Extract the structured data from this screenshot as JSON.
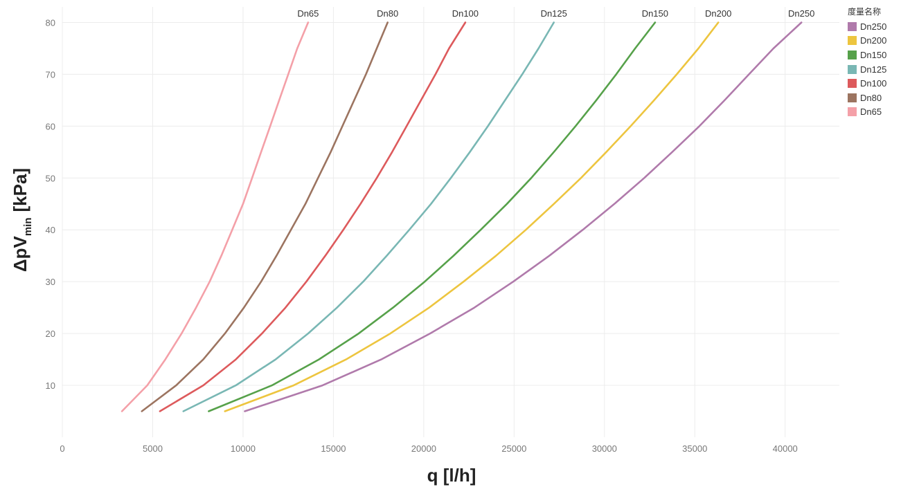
{
  "chart_data": {
    "type": "line",
    "title": "",
    "xlabel": "q [l/h]",
    "ylabel_main": "ΔpV",
    "ylabel_sub": "min",
    "ylabel_unit": "[kPa]",
    "xlim": [
      0,
      43000
    ],
    "ylim": [
      0,
      83
    ],
    "x_ticks": [
      "0",
      "5000",
      "10000",
      "15000",
      "20000",
      "25000",
      "30000",
      "35000",
      "40000"
    ],
    "y_ticks": [
      "10",
      "20",
      "30",
      "40",
      "50",
      "60",
      "70",
      "80"
    ],
    "grid": true,
    "legend_position": "top-right",
    "legend_title": "度量名称",
    "legend_order": [
      "Dn250",
      "Dn200",
      "Dn150",
      "Dn125",
      "Dn100",
      "Dn80",
      "Dn65"
    ],
    "y_values": [
      5,
      10,
      15,
      20,
      25,
      30,
      35,
      40,
      45,
      50,
      55,
      60,
      65,
      70,
      75,
      80
    ],
    "series": [
      {
        "name": "Dn65",
        "color": "#f4a0a8",
        "end_label": "Dn65",
        "x": [
          3300,
          4700,
          5700,
          6600,
          7400,
          8150,
          8800,
          9400,
          10000,
          10500,
          11000,
          11500,
          12000,
          12500,
          13000,
          13600
        ]
      },
      {
        "name": "Dn80",
        "color": "#9c7460",
        "end_label": "Dn80",
        "x": [
          4400,
          6300,
          7800,
          9000,
          10050,
          11000,
          11850,
          12650,
          13450,
          14150,
          14850,
          15500,
          16150,
          16800,
          17400,
          18000
        ]
      },
      {
        "name": "Dn100",
        "color": "#dd5a5c",
        "end_label": "Dn100",
        "x": [
          5400,
          7800,
          9600,
          11050,
          12350,
          13500,
          14550,
          15550,
          16500,
          17400,
          18250,
          19050,
          19850,
          20650,
          21400,
          22300
        ]
      },
      {
        "name": "Dn125",
        "color": "#79b7b4",
        "end_label": "Dn125",
        "x": [
          6700,
          9600,
          11800,
          13600,
          15200,
          16650,
          17950,
          19200,
          20400,
          21500,
          22550,
          23550,
          24500,
          25450,
          26350,
          27200
        ]
      },
      {
        "name": "Dn150",
        "color": "#56a14a",
        "end_label": "Dn150",
        "x": [
          8100,
          11600,
          14200,
          16400,
          18300,
          20050,
          21650,
          23150,
          24600,
          25950,
          27200,
          28400,
          29550,
          30650,
          31700,
          32800
        ]
      },
      {
        "name": "Dn200",
        "color": "#edc53f",
        "end_label": "Dn200",
        "x": [
          9000,
          12800,
          15700,
          18150,
          20300,
          22200,
          24000,
          25650,
          27200,
          28700,
          30100,
          31450,
          32750,
          34000,
          35200,
          36300
        ]
      },
      {
        "name": "Dn250",
        "color": "#b07aab",
        "end_label": "Dn250",
        "x": [
          10100,
          14400,
          17650,
          20350,
          22800,
          24950,
          26950,
          28800,
          30550,
          32200,
          33750,
          35250,
          36650,
          38000,
          39350,
          40900
        ]
      }
    ]
  }
}
